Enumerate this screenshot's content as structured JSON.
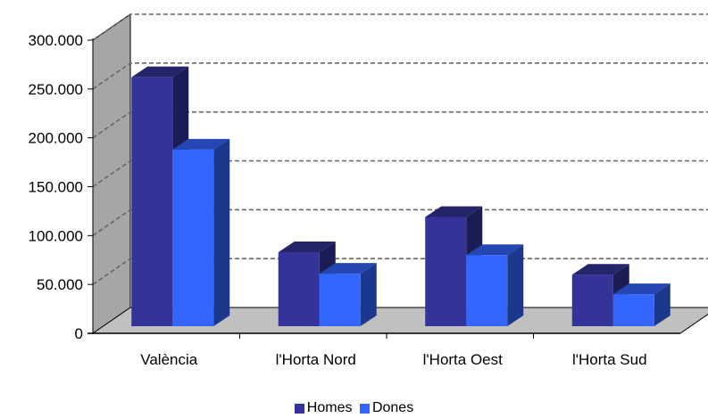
{
  "chart_data": {
    "type": "bar",
    "categories": [
      "València",
      "l'Horta Nord",
      "l'Horta Oest",
      "l'Horta Sud"
    ],
    "series": [
      {
        "name": "Homes",
        "values": [
          262000,
          83000,
          119000,
          60000
        ],
        "color": "#333399"
      },
      {
        "name": "Dones",
        "values": [
          188000,
          61000,
          80000,
          40000
        ],
        "color": "#3366FF"
      }
    ],
    "yticks": [
      "0",
      "50.000",
      "100.000",
      "150.000",
      "200.000",
      "250.000",
      "300.000"
    ],
    "ylim": [
      0,
      300000
    ],
    "grid": true,
    "legend_position": "bottom"
  }
}
